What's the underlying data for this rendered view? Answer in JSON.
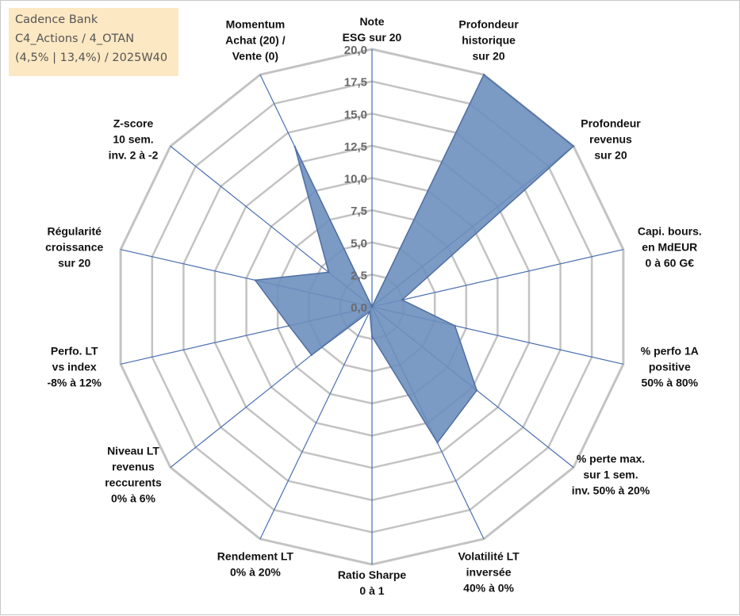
{
  "info": {
    "line1": "Cadence Bank",
    "line2": "C4_Actions / 4_OTAN",
    "line3": "(4,5% | 13,4%) / 2025W40"
  },
  "chart_data": {
    "type": "radar",
    "rmin": 0,
    "rmax": 20,
    "ticks": [
      "0,0",
      "2,5",
      "5,0",
      "7,5",
      "10,0",
      "12,5",
      "15,0",
      "17,5",
      "20,0"
    ],
    "grid": true,
    "axes": [
      [
        "Note",
        "ESG sur 20"
      ],
      [
        "Profondeur",
        "historique",
        "sur 20"
      ],
      [
        "Profondeur",
        "revenus",
        "sur 20"
      ],
      [
        "Capi. bours.",
        "en MdEUR",
        "0 à 60 G€"
      ],
      [
        "% perfo 1A",
        "positive",
        "50% à 80%"
      ],
      [
        "% perte max.",
        "sur 1 sem.",
        "inv. 50% à 20%"
      ],
      [
        "Volatilité LT",
        "inversée",
        "40% à 0%"
      ],
      [
        "Ratio Sharpe",
        "0 à 1"
      ],
      [
        "Rendement LT",
        "0% à 20%"
      ],
      [
        "Niveau LT",
        "revenus",
        "reccurents",
        "0% à 6%"
      ],
      [
        "Perfo. LT",
        "vs index",
        "-8% à 12%"
      ],
      [
        "Régularité",
        "croissance",
        "sur 20"
      ],
      [
        "Z-score",
        "10 sem.",
        "inv. 2 à -2"
      ],
      [
        "Momentum",
        "Achat (20) /",
        "Vente (0)"
      ]
    ],
    "values": [
      0,
      20,
      20,
      2.4,
      6.6,
      10.4,
      11.7,
      2.3,
      0.4,
      6.0,
      6.6,
      9.3,
      4.3,
      13.8
    ],
    "fill_color": "#6d8fbe",
    "stroke_color": "#4f6fa3",
    "grid_color": "#c3c3c3",
    "spoke_color": "#4a6fb0"
  }
}
